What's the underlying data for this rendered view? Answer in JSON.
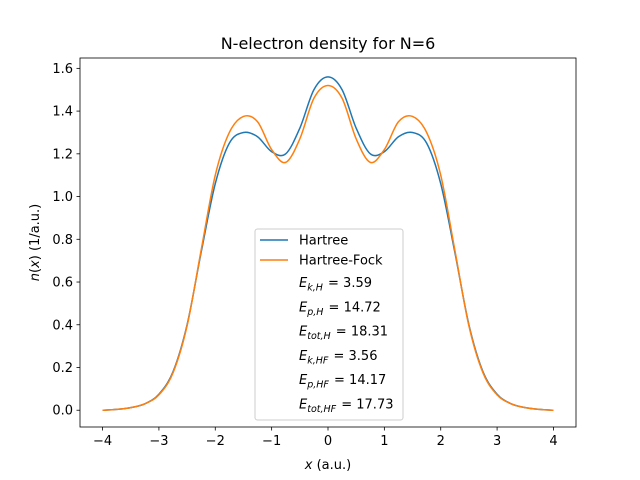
{
  "chart_data": {
    "type": "line",
    "title": "N-electron density for N=6",
    "xlabel": {
      "var": "x",
      "unit": " (a.u.)"
    },
    "ylabel": {
      "var": "n(x)",
      "unit": " (1/a.u.)"
    },
    "xlim": [
      -4.4,
      4.4
    ],
    "ylim": [
      -0.0785,
      1.6485
    ],
    "xticks": [
      -4,
      -3,
      -2,
      -1,
      0,
      1,
      2,
      3,
      4
    ],
    "xtick_labels": [
      "−4",
      "−3",
      "−2",
      "−1",
      "0",
      "1",
      "2",
      "3",
      "4"
    ],
    "yticks": [
      0.0,
      0.2,
      0.4,
      0.6,
      0.8,
      1.0,
      1.2,
      1.4,
      1.6
    ],
    "ytick_labels": [
      "0.0",
      "0.2",
      "0.4",
      "0.6",
      "0.8",
      "1.0",
      "1.2",
      "1.4",
      "1.6"
    ],
    "grid": false,
    "legend_placement": "lower center",
    "x": [
      -4.0,
      -3.75,
      -3.5,
      -3.25,
      -3.0,
      -2.75,
      -2.5,
      -2.25,
      -2.0,
      -1.75,
      -1.5,
      -1.25,
      -1.0,
      -0.75,
      -0.5,
      -0.25,
      0.0,
      0.25,
      0.5,
      0.75,
      1.0,
      1.25,
      1.5,
      1.75,
      2.0,
      2.25,
      2.5,
      2.75,
      3.0,
      3.25,
      3.5,
      3.75,
      4.0
    ],
    "series": [
      {
        "name": "Hartree",
        "color": "#1f77b4",
        "values": [
          0.0,
          0.004,
          0.012,
          0.03,
          0.075,
          0.18,
          0.4,
          0.74,
          1.06,
          1.25,
          1.3,
          1.28,
          1.21,
          1.2,
          1.32,
          1.5,
          1.56,
          1.5,
          1.32,
          1.2,
          1.21,
          1.28,
          1.3,
          1.25,
          1.06,
          0.74,
          0.4,
          0.18,
          0.075,
          0.03,
          0.012,
          0.004,
          0.0
        ]
      },
      {
        "name": "Hartree-Fock",
        "color": "#ff7f0e",
        "values": [
          0.0,
          0.004,
          0.012,
          0.03,
          0.072,
          0.175,
          0.395,
          0.75,
          1.1,
          1.3,
          1.375,
          1.35,
          1.22,
          1.16,
          1.27,
          1.46,
          1.52,
          1.46,
          1.27,
          1.16,
          1.22,
          1.35,
          1.375,
          1.3,
          1.1,
          0.75,
          0.395,
          0.175,
          0.072,
          0.03,
          0.012,
          0.004,
          0.0
        ]
      }
    ],
    "annotations": [
      {
        "sym": "E",
        "sub": "k,H",
        "value": "3.59"
      },
      {
        "sym": "E",
        "sub": "p,H",
        "value": "14.72"
      },
      {
        "sym": "E",
        "sub": "tot,H",
        "value": "18.31"
      },
      {
        "sym": "E",
        "sub": "k,HF",
        "value": "3.56"
      },
      {
        "sym": "E",
        "sub": "p,HF",
        "value": "14.17"
      },
      {
        "sym": "E",
        "sub": "tot,HF",
        "value": "17.73"
      }
    ]
  }
}
